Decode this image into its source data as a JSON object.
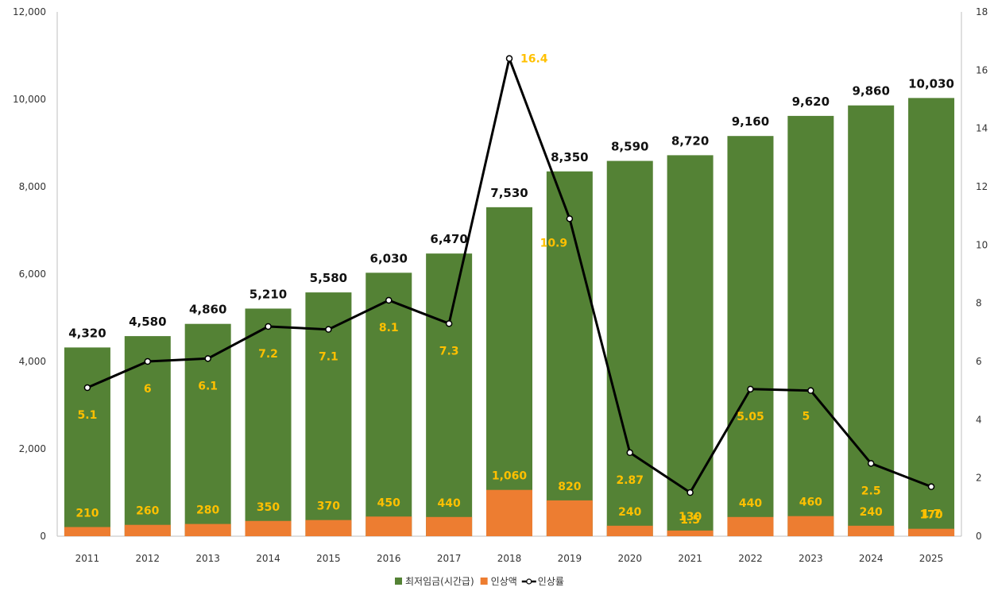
{
  "colors": {
    "wage": "#548235",
    "increase": "#ED7D31",
    "rate_line": "#000000",
    "label_yellow": "#FFC000",
    "background": "#FFFFFF",
    "axis": "#BFBFBF"
  },
  "chart_data": {
    "type": "bar",
    "categories": [
      "2011",
      "2012",
      "2013",
      "2014",
      "2015",
      "2016",
      "2017",
      "2018",
      "2019",
      "2020",
      "2021",
      "2022",
      "2023",
      "2024",
      "2025"
    ],
    "y_left": {
      "min": 0,
      "max": 12000,
      "ticks": [
        0,
        2000,
        4000,
        6000,
        8000,
        10000,
        12000
      ],
      "tick_labels": [
        "0",
        "2,000",
        "4,000",
        "6,000",
        "8,000",
        "10,000",
        "12,000"
      ]
    },
    "y_right": {
      "min": 0,
      "max": 18,
      "ticks": [
        0,
        2,
        4,
        6,
        8,
        10,
        12,
        14,
        16,
        18
      ],
      "tick_labels": [
        "0",
        "2",
        "4",
        "6",
        "8",
        "10",
        "12",
        "14",
        "16",
        "18"
      ]
    },
    "series": [
      {
        "name": "최저임금(시간급)",
        "kind": "bar",
        "axis": "left",
        "values": [
          4320,
          4580,
          4860,
          5210,
          5580,
          6030,
          6470,
          7530,
          8350,
          8590,
          8720,
          9160,
          9620,
          9860,
          10030
        ],
        "labels": [
          "4,320",
          "4,580",
          "4,860",
          "5,210",
          "5,580",
          "6,030",
          "6,470",
          "7,530",
          "8,350",
          "8,590",
          "8,720",
          "9,160",
          "9,620",
          "9,860",
          "10,030"
        ]
      },
      {
        "name": "인상액",
        "kind": "bar",
        "axis": "left",
        "values": [
          210,
          260,
          280,
          350,
          370,
          450,
          440,
          1060,
          820,
          240,
          130,
          440,
          460,
          240,
          170
        ],
        "labels": [
          "210",
          "260",
          "280",
          "350",
          "370",
          "450",
          "440",
          "1,060",
          "820",
          "240",
          "130",
          "440",
          "460",
          "240",
          "170"
        ]
      },
      {
        "name": "인상률",
        "kind": "line",
        "axis": "right",
        "values": [
          5.1,
          6,
          6.1,
          7.2,
          7.1,
          8.1,
          7.3,
          16.4,
          10.9,
          2.87,
          1.5,
          5.05,
          5,
          2.5,
          1.7
        ],
        "labels": [
          "5.1",
          "6",
          "6.1",
          "7.2",
          "7.1",
          "8.1",
          "7.3",
          "16.4",
          "10.9",
          "2.87",
          "1.5",
          "5.05",
          "5",
          "2.5",
          "1.7"
        ]
      }
    ],
    "grid": false,
    "legend_position": "bottom"
  }
}
